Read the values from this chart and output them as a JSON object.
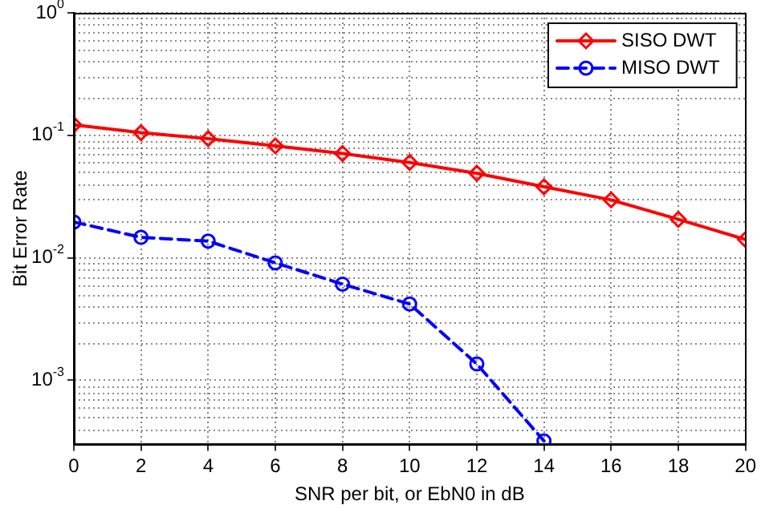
{
  "chart_data": {
    "type": "line",
    "xlabel": "SNR per bit, or EbN0 in dB",
    "ylabel": "Bit Error Rate",
    "x": [
      0,
      2,
      4,
      6,
      8,
      10,
      12,
      14,
      16,
      18,
      20
    ],
    "series": [
      {
        "name": "SISO DWT",
        "color": "#ff0000",
        "marker": "diamond",
        "line_style": "solid",
        "values": [
          0.122,
          0.105,
          0.094,
          0.082,
          0.071,
          0.06,
          0.049,
          0.038,
          0.0297,
          0.0206,
          0.0141
        ]
      },
      {
        "name": "MISO DWT",
        "color": "#0000ff",
        "marker": "circle",
        "line_style": "dashed",
        "x": [
          0,
          2,
          4,
          6,
          8,
          10,
          12,
          14
        ],
        "values": [
          0.0196,
          0.0147,
          0.0137,
          0.0091,
          0.0061,
          0.0042,
          0.00136,
          0.00032
        ]
      }
    ],
    "log": "y",
    "xlim": [
      0,
      20
    ],
    "xticks": [
      0,
      2,
      4,
      6,
      8,
      10,
      12,
      14,
      16,
      18,
      20
    ],
    "ylim": [
      0.0003,
      1
    ],
    "yticks": [
      {
        "value": 0.001,
        "label": "10$^{-3}$"
      },
      {
        "value": 0.01,
        "label": "10$^{-2}$"
      },
      {
        "value": 0.1,
        "label": "10$^{-1}$"
      },
      {
        "value": 1,
        "label": "10$^{0}$"
      }
    ],
    "grid": true,
    "legend": "top right"
  }
}
